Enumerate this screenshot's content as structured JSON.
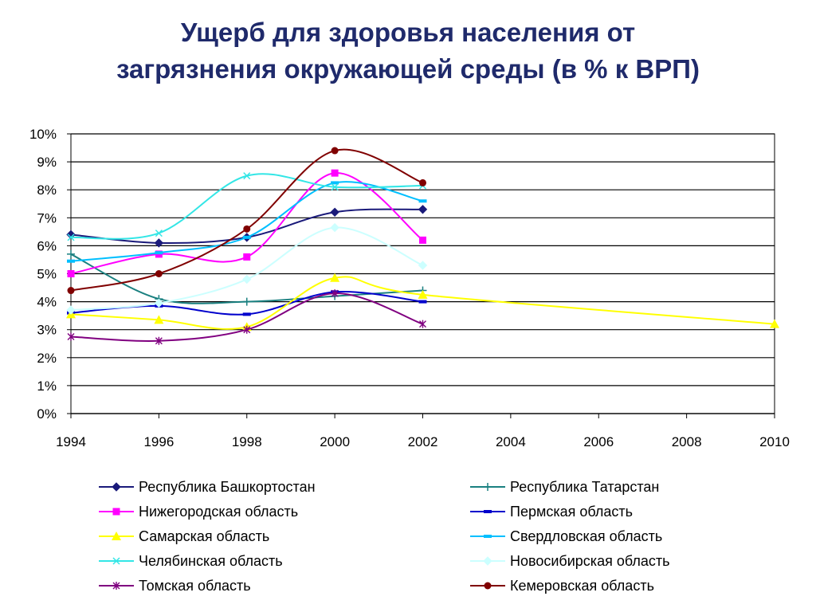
{
  "title": {
    "line1": "Ущерб для здоровья населения от",
    "line2": "загрязнения окружающей среды (в % к ВРП)"
  },
  "chart_data": {
    "type": "line",
    "title": "Ущерб для здоровья населения от загрязнения окружающей среды (в % к ВРП)",
    "xlabel": "",
    "ylabel": "",
    "xlim": [
      1994,
      2010
    ],
    "ylim": [
      0,
      10
    ],
    "x_ticks": [
      1994,
      1996,
      1998,
      2000,
      2002,
      2004,
      2006,
      2008,
      2010
    ],
    "y_ticks": [
      0,
      1,
      2,
      3,
      4,
      5,
      6,
      7,
      8,
      9,
      10
    ],
    "y_tick_suffix": "%",
    "grid": "horizontal",
    "legend_placement": "bottom",
    "series": [
      {
        "name": "Республика Башкортостан",
        "color": "#1a1a7a",
        "marker": "diamond",
        "x": [
          1994,
          1996,
          1998,
          2000,
          2002
        ],
        "y": [
          6.4,
          6.1,
          6.3,
          7.2,
          7.3
        ]
      },
      {
        "name": "Республика Татарстан",
        "color": "#1a8080",
        "marker": "plus",
        "x": [
          1994,
          1996,
          1998,
          2000,
          2002
        ],
        "y": [
          5.7,
          4.1,
          4.0,
          4.2,
          4.4
        ]
      },
      {
        "name": "Нижегородская область",
        "color": "#ff00ff",
        "marker": "square",
        "x": [
          1994,
          1996,
          1998,
          2000,
          2002
        ],
        "y": [
          5.0,
          5.7,
          5.6,
          8.6,
          6.2
        ]
      },
      {
        "name": "Пермская область",
        "color": "#0000cc",
        "marker": "dash",
        "x": [
          1994,
          1996,
          1998,
          2000,
          2002
        ],
        "y": [
          3.6,
          3.85,
          3.55,
          4.35,
          4.0
        ]
      },
      {
        "name": "Самарская область",
        "color": "#ffff00",
        "marker": "triangle",
        "x": [
          1994,
          1996,
          1998,
          2000,
          2002,
          2010
        ],
        "y": [
          3.55,
          3.35,
          3.1,
          4.85,
          4.25,
          3.2
        ]
      },
      {
        "name": "Свердловская область",
        "color": "#00bfff",
        "marker": "dash",
        "x": [
          1994,
          1996,
          1998,
          2000,
          2002
        ],
        "y": [
          5.45,
          5.75,
          6.3,
          8.25,
          7.6
        ]
      },
      {
        "name": "Челябинская область",
        "color": "#33e6e6",
        "marker": "x",
        "x": [
          1994,
          1996,
          1998,
          2000,
          2002
        ],
        "y": [
          6.3,
          6.45,
          8.5,
          8.1,
          8.15
        ]
      },
      {
        "name": "Новосибирская область",
        "color": "#ccffff",
        "marker": "diamond",
        "x": [
          1994,
          1996,
          1998,
          2000,
          2002
        ],
        "y": [
          3.7,
          3.95,
          4.8,
          6.65,
          5.3
        ]
      },
      {
        "name": "Томская область",
        "color": "#800080",
        "marker": "asterisk",
        "x": [
          1994,
          1996,
          1998,
          2000,
          2002
        ],
        "y": [
          2.75,
          2.6,
          3.0,
          4.3,
          3.2
        ]
      },
      {
        "name": "Кемеровская область",
        "color": "#800000",
        "marker": "circle",
        "x": [
          1994,
          1996,
          1998,
          2000,
          2002
        ],
        "y": [
          4.4,
          5.0,
          6.6,
          9.4,
          8.25
        ]
      }
    ]
  }
}
